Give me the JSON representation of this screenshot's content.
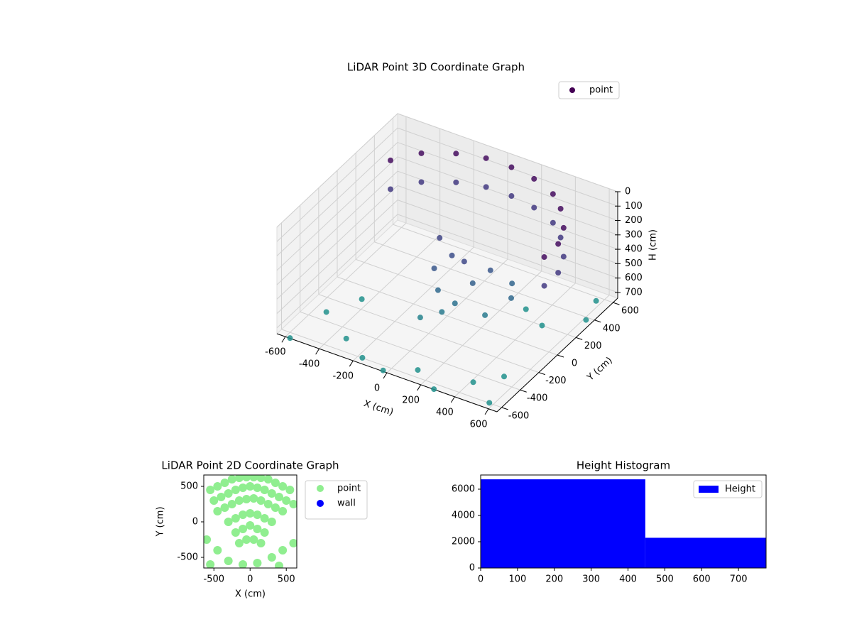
{
  "chart_data": [
    {
      "type": "scatter3d",
      "title": "LiDAR Point 3D Coordinate Graph",
      "xlabel": "X (cm)",
      "ylabel": "Y (cm)",
      "zlabel": "H (cm)",
      "xlim": [
        -650,
        650
      ],
      "ylim": [
        -650,
        650
      ],
      "zlim": [
        0,
        740
      ],
      "z_inverted": true,
      "xticks": [
        -600,
        -400,
        -200,
        0,
        200,
        400,
        600
      ],
      "yticks": [
        -600,
        -400,
        -200,
        0,
        200,
        400,
        600
      ],
      "zticks": [
        0,
        100,
        200,
        300,
        400,
        500,
        600,
        700
      ],
      "cmap": [
        "#440154",
        "#472d7b",
        "#3b528b",
        "#2c728e",
        "#21918c"
      ],
      "legend": "upper right",
      "series": [
        {
          "name": "point",
          "color": "#440154",
          "x": [
            -500,
            -500,
            -400,
            -400,
            -250,
            -250,
            -100,
            -100,
            50,
            50,
            200,
            200,
            350,
            350,
            450,
            450,
            550,
            550,
            600,
            600,
            600,
            600,
            -100,
            0,
            100,
            -50,
            0,
            50,
            -50,
            100,
            150,
            200,
            300,
            350,
            250,
            -550,
            -450,
            -350,
            -200,
            -50,
            100,
            250,
            400,
            500,
            550,
            -600,
            300,
            450,
            600,
            550
          ],
          "y": [
            300,
            300,
            450,
            450,
            550,
            550,
            600,
            600,
            600,
            600,
            570,
            570,
            500,
            500,
            400,
            400,
            250,
            250,
            100,
            100,
            -50,
            -50,
            100,
            50,
            0,
            -50,
            -100,
            -150,
            -200,
            -100,
            0,
            100,
            150,
            50,
            -50,
            -300,
            -100,
            -450,
            -550,
            -600,
            -500,
            -600,
            -450,
            -300,
            -550,
            -600,
            300,
            200,
            400,
            600
          ],
          "h": [
            50,
            250,
            50,
            250,
            50,
            250,
            50,
            250,
            50,
            250,
            50,
            250,
            50,
            250,
            50,
            250,
            50,
            250,
            50,
            250,
            50,
            250,
            300,
            350,
            320,
            400,
            500,
            600,
            650,
            550,
            450,
            400,
            480,
            500,
            600,
            760,
            750,
            770,
            780,
            775,
            770,
            780,
            760,
            770,
            780,
            780,
            750,
            740,
            760,
            770
          ]
        }
      ]
    },
    {
      "type": "scatter",
      "title": "LiDAR Point 2D Coordinate Graph",
      "xlabel": "X (cm)",
      "ylabel": "Y (cm)",
      "xlim": [
        -640,
        645
      ],
      "ylim": [
        -650,
        660
      ],
      "xticks": [
        -500,
        0,
        500
      ],
      "yticks": [
        -500,
        0,
        500
      ],
      "legend": "outside right",
      "series": [
        {
          "name": "point",
          "color": "#90ee90",
          "x": [
            -550,
            -450,
            -350,
            -250,
            -150,
            -50,
            50,
            150,
            250,
            350,
            450,
            550,
            -500,
            -400,
            -300,
            -200,
            -100,
            0,
            100,
            200,
            300,
            400,
            500,
            600,
            -450,
            -350,
            -250,
            -150,
            -50,
            50,
            150,
            250,
            350,
            450,
            -300,
            -200,
            -100,
            0,
            100,
            200,
            300,
            -200,
            -100,
            0,
            100,
            200,
            -150,
            -50,
            50,
            150,
            -600,
            -450,
            -300,
            -100,
            100,
            300,
            450,
            600,
            -550,
            400
          ],
          "values": [
            450,
            500,
            550,
            600,
            620,
            630,
            630,
            620,
            600,
            550,
            500,
            450,
            300,
            350,
            400,
            450,
            480,
            500,
            480,
            450,
            400,
            350,
            300,
            250,
            150,
            200,
            250,
            300,
            320,
            330,
            300,
            250,
            200,
            150,
            0,
            50,
            100,
            120,
            100,
            50,
            0,
            -150,
            -100,
            -50,
            -100,
            -150,
            -300,
            -250,
            -250,
            -300,
            -250,
            -400,
            -550,
            -600,
            -580,
            -500,
            -400,
            -300,
            -600,
            -620
          ]
        },
        {
          "name": "wall",
          "color": "#0000ff",
          "x": [],
          "values": []
        }
      ]
    },
    {
      "type": "histogram",
      "title": "Height Histogram",
      "bins": [
        0,
        447,
        775
      ],
      "counts": [
        6750,
        2300
      ],
      "color": "#0000ff",
      "name": "Height",
      "xlim": [
        0,
        775
      ],
      "ylim": [
        0,
        7080
      ],
      "xticks": [
        0,
        100,
        200,
        300,
        400,
        500,
        600,
        700
      ],
      "yticks": [
        0,
        2000,
        4000,
        6000
      ],
      "legend": "upper right"
    }
  ]
}
